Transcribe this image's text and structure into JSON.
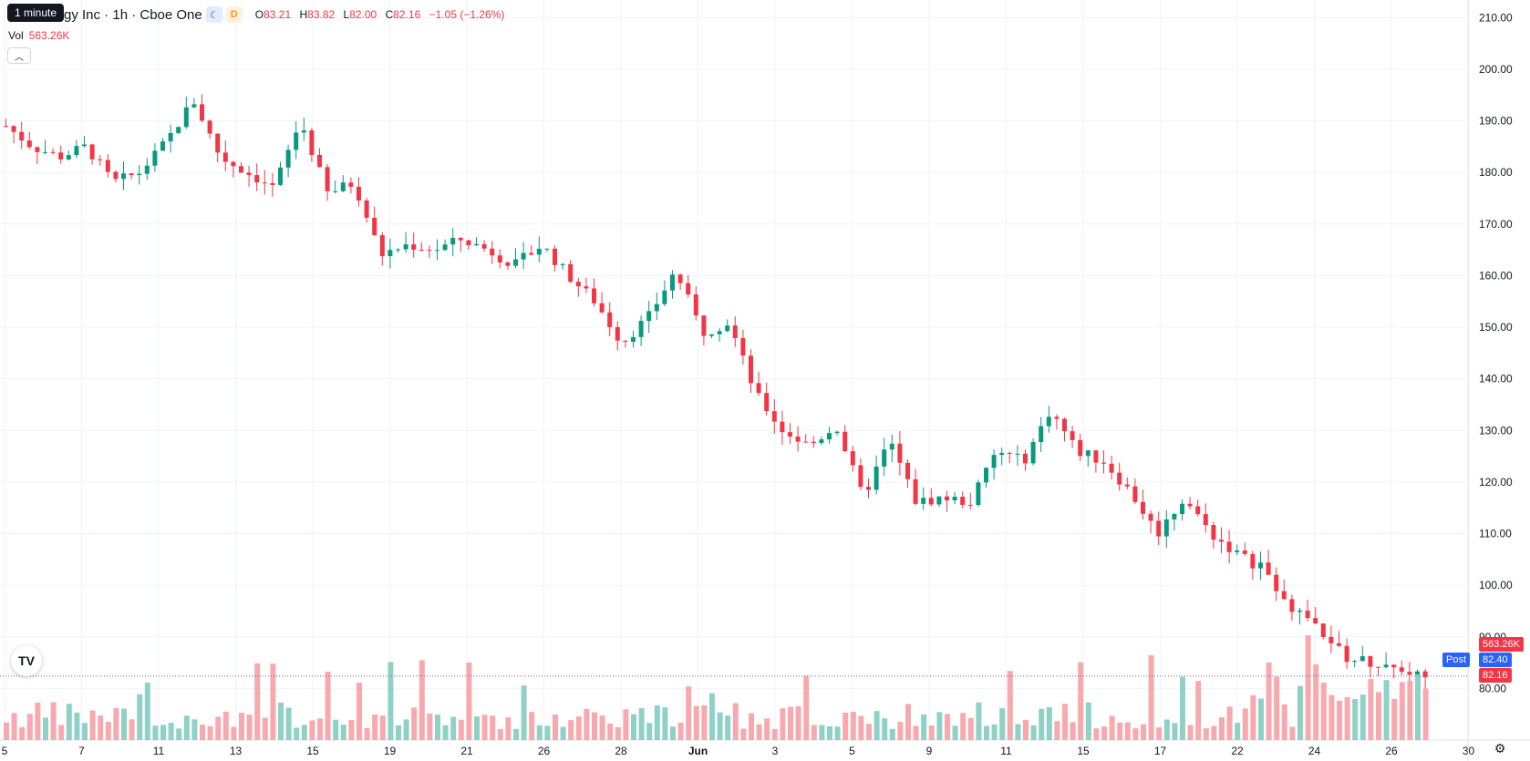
{
  "header": {
    "tooltip": "1 minute",
    "title": "gy Inc · 1h · Cboe One",
    "session_icon": "moon-icon",
    "delay_badge": "D",
    "ohlc": {
      "o_label": "O",
      "o": "83.21",
      "h_label": "H",
      "h": "83.82",
      "l_label": "L",
      "l": "82.00",
      "c_label": "C",
      "c": "82.16",
      "change": "−1.05 (−1.26%)"
    },
    "volume_label": "Vol",
    "volume_value": "563.26K"
  },
  "price_tags": {
    "volume": "563.26K",
    "post_label": "Post",
    "post_price": "82.40",
    "last_price": "82.16"
  },
  "colors": {
    "up": "#089981",
    "down": "#f23645",
    "up_vol": "#8fd1c6",
    "down_vol": "#f7a9ae",
    "post": "#2962ff"
  },
  "icons": {
    "logo": "tradingview-logo-icon",
    "settings": "gear-icon",
    "collapse": "chevron-up-icon"
  },
  "chart_data": {
    "type": "candlestick",
    "y_axis": {
      "min": 70,
      "max": 212,
      "ticks": [
        80,
        90,
        100,
        110,
        120,
        130,
        140,
        150,
        160,
        170,
        180,
        190,
        200,
        210
      ],
      "tick_labels": [
        "80.00",
        "90.00",
        "100.00",
        "110.00",
        "120.00",
        "130.00",
        "140.00",
        "150.00",
        "160.00",
        "170.00",
        "180.00",
        "190.00",
        "200.00",
        "210.00"
      ]
    },
    "x_axis": {
      "labels": [
        "5",
        "7",
        "11",
        "13",
        "15",
        "19",
        "21",
        "26",
        "28",
        "Jun",
        "3",
        "5",
        "9",
        "11",
        "15",
        "17",
        "22",
        "24",
        "26",
        "30"
      ]
    },
    "close_path": [
      [
        0,
        189
      ],
      [
        1,
        185
      ],
      [
        2,
        183
      ],
      [
        3,
        185
      ],
      [
        4,
        178
      ],
      [
        5,
        180
      ],
      [
        6,
        186
      ],
      [
        7,
        194
      ],
      [
        8,
        183
      ],
      [
        9,
        180
      ],
      [
        10,
        177
      ],
      [
        11,
        190
      ],
      [
        12,
        176
      ],
      [
        13,
        178
      ],
      [
        14,
        164
      ],
      [
        15,
        166
      ],
      [
        16,
        165
      ],
      [
        17,
        167
      ],
      [
        18,
        165
      ],
      [
        19,
        162
      ],
      [
        20,
        166
      ],
      [
        21,
        160
      ],
      [
        22,
        155
      ],
      [
        23,
        147
      ],
      [
        24,
        152
      ],
      [
        25,
        161
      ],
      [
        26,
        149
      ],
      [
        27,
        151
      ],
      [
        28,
        137
      ],
      [
        29,
        130
      ],
      [
        30,
        127
      ],
      [
        31,
        131
      ],
      [
        32,
        117
      ],
      [
        33,
        128
      ],
      [
        34,
        116
      ],
      [
        35,
        117
      ],
      [
        36,
        116
      ],
      [
        37,
        126
      ],
      [
        38,
        124
      ],
      [
        39,
        134
      ],
      [
        40,
        126
      ],
      [
        41,
        124
      ],
      [
        42,
        118
      ],
      [
        43,
        110
      ],
      [
        44,
        117
      ],
      [
        45,
        110
      ],
      [
        46,
        106
      ],
      [
        47,
        103
      ],
      [
        48,
        96
      ],
      [
        49,
        92
      ],
      [
        50,
        86
      ],
      [
        51,
        85
      ],
      [
        52,
        84
      ],
      [
        53,
        82.16
      ]
    ],
    "last_price": 82.16,
    "post_price": 82.4
  }
}
